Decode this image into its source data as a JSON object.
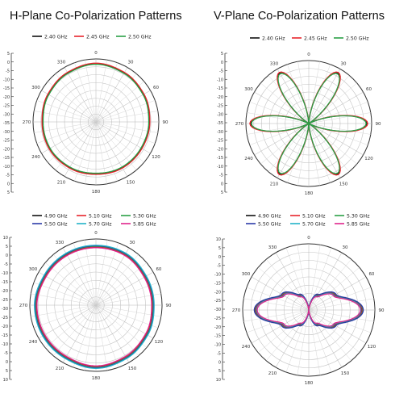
{
  "titles": {
    "h_plane": "H-Plane Co-Polarization Patterns",
    "v_plane": "V-Plane Co-Polarization Patterns"
  },
  "chart_data": [
    {
      "type": "polar",
      "angle_ticks": [
        "0",
        "30",
        "60",
        "90",
        "120",
        "150",
        "180",
        "210",
        "240",
        "270",
        "300",
        "330"
      ],
      "legend_columns": 3,
      "series": [
        {
          "name": "2.40 GHz",
          "color": "#111111",
          "offset": 0
        },
        {
          "name": "2.45 GHz",
          "color": "#e8242c",
          "offset": 0.3
        },
        {
          "name": "2.50 GHz",
          "color": "#2aa046",
          "offset": -0.4
        }
      ],
      "rlim": [
        -35,
        5
      ],
      "r_ticks": [
        "5",
        "0",
        "-5",
        "-10",
        "-15",
        "-20",
        "-25",
        "-30",
        "-35",
        "-30",
        "-25",
        "-20",
        "-15",
        "-10",
        "-5",
        "0",
        "5"
      ],
      "r_tick_labels_visible": [
        "5",
        "0",
        "-5",
        "-10",
        "-15",
        "-20",
        "-25",
        "-30",
        "-35",
        "-30",
        "-25",
        "-20",
        "-15",
        "-10",
        "-5",
        "0",
        "5"
      ],
      "pattern": {
        "theta_deg": [
          0,
          30,
          60,
          90,
          120,
          150,
          180,
          210,
          240,
          270,
          300,
          330
        ],
        "gain_dbi": [
          2,
          1,
          0,
          -1,
          -1.5,
          -1.5,
          -2,
          -1.5,
          -1,
          -1,
          0,
          1
        ]
      }
    },
    {
      "type": "polar",
      "angle_ticks": [
        "0",
        "30",
        "60",
        "90",
        "120",
        "150",
        "180",
        "210",
        "240",
        "270",
        "300",
        "330"
      ],
      "legend_columns": 3,
      "series": [
        {
          "name": "2.40 GHz",
          "color": "#111111",
          "offset": 0
        },
        {
          "name": "2.45 GHz",
          "color": "#e8242c",
          "offset": 0.5
        },
        {
          "name": "2.50 GHz",
          "color": "#2aa046",
          "offset": -0.5
        }
      ],
      "rlim": [
        -35,
        5
      ],
      "r_ticks": [
        "5",
        "0",
        "-5",
        "-10",
        "-15",
        "-20",
        "-25",
        "-30",
        "-35",
        "-30",
        "-25",
        "-20",
        "-15",
        "-10",
        "-5",
        "0",
        "5"
      ],
      "pattern": {
        "theta_deg": [
          0,
          30,
          60,
          90,
          120,
          150,
          180,
          210,
          240,
          270,
          300,
          330
        ],
        "gain_dbi": [
          -35,
          2,
          -35,
          2,
          -35,
          2,
          -35,
          2,
          -35,
          2,
          -35,
          2
        ]
      }
    },
    {
      "type": "polar",
      "angle_ticks": [
        "0",
        "30",
        "60",
        "90",
        "120",
        "150",
        "180",
        "210",
        "240",
        "270",
        "300",
        "330"
      ],
      "legend_columns": 3,
      "series": [
        {
          "name": "4.90 GHz",
          "color": "#111111",
          "offset": 0
        },
        {
          "name": "5.10 GHz",
          "color": "#e8242c",
          "offset": 0.3
        },
        {
          "name": "5.30 GHz",
          "color": "#2aa046",
          "offset": 0.6
        },
        {
          "name": "5.50 GHz",
          "color": "#2b3aa8",
          "offset": 0.9
        },
        {
          "name": "5.70 GHz",
          "color": "#22b3c8",
          "offset": 1.2
        },
        {
          "name": "5.85 GHz",
          "color": "#e0248c",
          "offset": -0.3
        }
      ],
      "rlim": [
        -30,
        10
      ],
      "r_ticks": [
        "10",
        "5",
        "0",
        "-5",
        "-10",
        "-15",
        "-20",
        "-25",
        "-30",
        "-25",
        "-20",
        "-15",
        "-10",
        "-5",
        "0",
        "5",
        "10"
      ],
      "pattern": {
        "theta_deg": [
          0,
          30,
          60,
          90,
          120,
          150,
          180,
          210,
          240,
          270,
          300,
          330
        ],
        "gain_dbi": [
          5,
          5,
          4,
          4,
          5,
          6,
          7,
          6,
          6,
          6,
          5,
          5
        ]
      }
    },
    {
      "type": "polar",
      "angle_ticks": [
        "0",
        "30",
        "60",
        "90",
        "120",
        "150",
        "180",
        "210",
        "240",
        "270",
        "300",
        "330"
      ],
      "legend_columns": 3,
      "series": [
        {
          "name": "4.90 GHz",
          "color": "#111111",
          "offset": 0
        },
        {
          "name": "5.10 GHz",
          "color": "#e8242c",
          "offset": 0.4
        },
        {
          "name": "5.30 GHz",
          "color": "#2aa046",
          "offset": 0.8
        },
        {
          "name": "5.50 GHz",
          "color": "#2b3aa8",
          "offset": 1.0
        },
        {
          "name": "5.70 GHz",
          "color": "#22b3c8",
          "offset": -0.4
        },
        {
          "name": "5.85 GHz",
          "color": "#e0248c",
          "offset": -0.8
        }
      ],
      "rlim": [
        -30,
        10
      ],
      "r_ticks": [
        "10",
        "5",
        "0",
        "-5",
        "-10",
        "-15",
        "-20",
        "-25",
        "-30",
        "-25",
        "-20",
        "-15",
        "-10",
        "-5",
        "0",
        "5",
        "10"
      ],
      "pattern": {
        "theta_deg": [
          0,
          30,
          60,
          90,
          120,
          150,
          180,
          210,
          240,
          270,
          300,
          330
        ],
        "gain_dbi": [
          -30,
          -20,
          -12,
          2,
          -12,
          -20,
          -30,
          -20,
          -12,
          2,
          -12,
          -20
        ]
      }
    }
  ]
}
